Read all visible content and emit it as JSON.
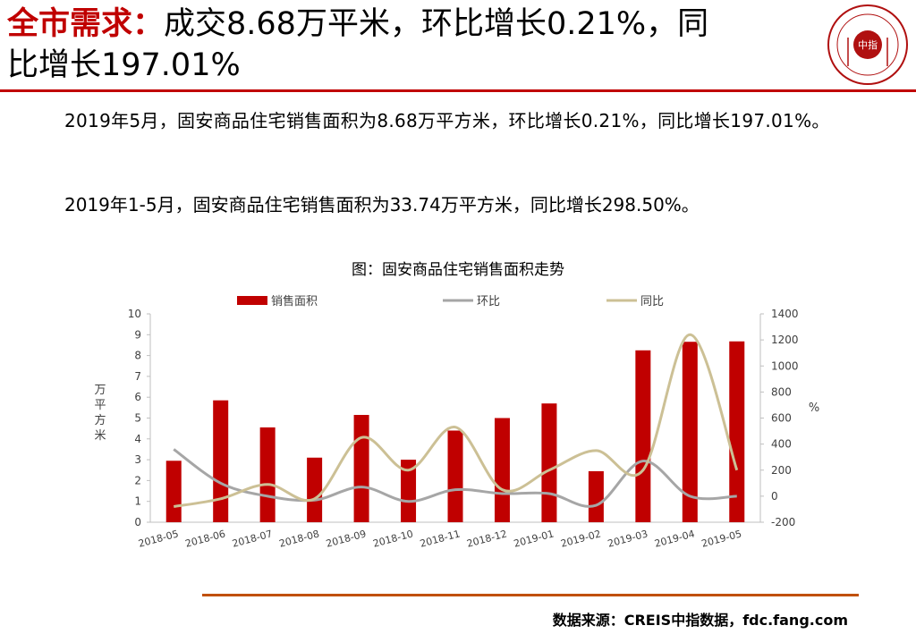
{
  "header": {
    "title_accent": "全市需求：",
    "title_rest_line1": "成交8.68万平米，环比增长0.21%，同",
    "title_line2": "比增长197.01%",
    "logo_text": "中指"
  },
  "body": {
    "paragraph1": "2019年5月，固安商品住宅销售面积为8.68万平方米，环比增长0.21%，同比增长197.01%。",
    "paragraph2": "2019年1-5月，固安商品住宅销售面积为33.74万平方米，同比增长298.50%。"
  },
  "chart_data": {
    "type": "bar",
    "title": "图：固安商品住宅销售面积走势",
    "categories": [
      "2018-05",
      "2018-06",
      "2018-07",
      "2018-08",
      "2018-09",
      "2018-10",
      "2018-11",
      "2018-12",
      "2019-01",
      "2019-02",
      "2019-03",
      "2019-04",
      "2019-05"
    ],
    "ylabel_left": "万平方米",
    "ylabel_right": "%",
    "ylim_left": [
      0,
      10
    ],
    "yticks_left": [
      "0",
      "1",
      "2",
      "3",
      "4",
      "5",
      "6",
      "7",
      "8",
      "9",
      "10"
    ],
    "ylim_right": [
      -200,
      1400
    ],
    "yticks_right": [
      "-200",
      "0",
      "200",
      "400",
      "600",
      "800",
      "1000",
      "1200",
      "1400"
    ],
    "legend_position": "top",
    "grid": false,
    "series": [
      {
        "name": "销售面积",
        "type": "bar",
        "axis": "left",
        "color": "#c00000",
        "values": [
          2.95,
          5.85,
          4.55,
          3.1,
          5.15,
          3.0,
          4.4,
          5.0,
          5.7,
          2.45,
          8.25,
          8.66,
          8.68
        ]
      },
      {
        "name": "环比",
        "type": "line",
        "axis": "right",
        "color": "#a6a6a6",
        "values": [
          360,
          100,
          0,
          -30,
          70,
          -40,
          50,
          20,
          20,
          -70,
          270,
          0,
          0
        ]
      },
      {
        "name": "同比",
        "type": "line",
        "axis": "right",
        "color": "#ccc095",
        "values": [
          -80,
          -20,
          90,
          -20,
          450,
          200,
          530,
          50,
          200,
          350,
          200,
          1240,
          200
        ]
      }
    ]
  },
  "footer": {
    "source": "数据来源：CREIS中指数据，fdc.fang.com"
  }
}
